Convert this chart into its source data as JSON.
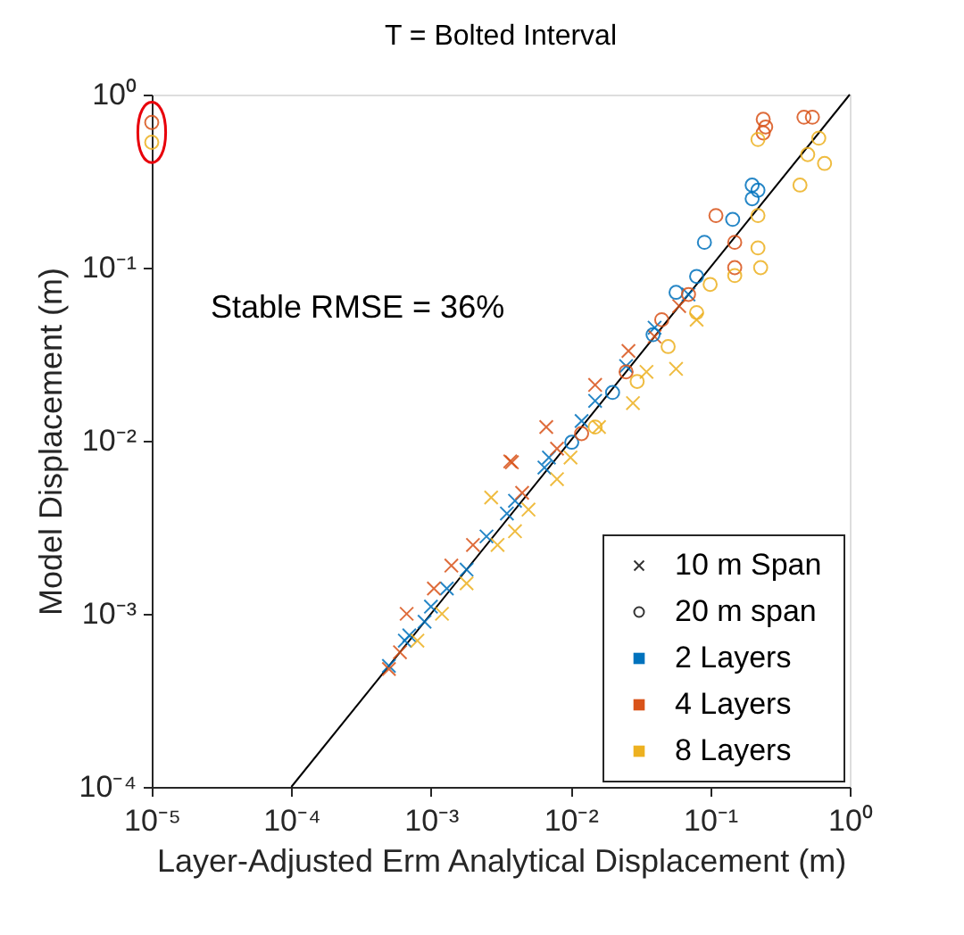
{
  "chart_data": {
    "type": "scatter",
    "title": "T = Bolted Interval",
    "xlabel": "Layer-Adjusted Erm Analytical Displacement (m)",
    "ylabel": "Model Displacement (m)",
    "annotations": [
      "Stable RMSE = 36%"
    ],
    "log": "xy",
    "grid": false,
    "legend": "bottom right",
    "xlim": [
      1e-05,
      1
    ],
    "ylim": [
      0.0001,
      1
    ],
    "xticks": [
      {
        "value": 1e-05,
        "label": "10⁻⁵"
      },
      {
        "value": 0.0001,
        "label": "10⁻⁴"
      },
      {
        "value": 0.001,
        "label": "10⁻³"
      },
      {
        "value": 0.01,
        "label": "10⁻²"
      },
      {
        "value": 0.1,
        "label": "10⁻¹"
      },
      {
        "value": 1,
        "label": "10⁰"
      }
    ],
    "yticks": [
      {
        "value": 0.0001,
        "label": "10⁻⁴"
      },
      {
        "value": 0.001,
        "label": "10⁻³"
      },
      {
        "value": 0.01,
        "label": "10⁻²"
      },
      {
        "value": 0.1,
        "label": "10⁻¹"
      },
      {
        "value": 1,
        "label": "10⁰"
      }
    ],
    "series": [
      {
        "type": "line",
        "color": "#000000",
        "marker": "none",
        "x": [
          0.0001,
          1
        ],
        "values": [
          0.0001,
          1
        ]
      },
      {
        "color": "#0072bd",
        "marker": "cross",
        "x": [
          0.0005,
          0.00065,
          0.0007,
          0.0009,
          0.001,
          0.0013,
          0.0018,
          0.0025,
          0.0035,
          0.004,
          0.0065,
          0.007,
          0.012,
          0.015,
          0.025,
          0.04,
          0.07
        ],
        "values": [
          0.0005,
          0.0007,
          0.00075,
          0.0009,
          0.0011,
          0.0014,
          0.0018,
          0.0028,
          0.0038,
          0.0045,
          0.007,
          0.008,
          0.013,
          0.017,
          0.027,
          0.045,
          0.07
        ]
      },
      {
        "color": "#d95319",
        "marker": "cross",
        "x": [
          0.0005,
          0.0006,
          0.00067,
          0.00105,
          0.0014,
          0.002,
          0.0037,
          0.0038,
          0.0045,
          0.0067,
          0.008,
          0.015,
          0.026,
          0.04,
          0.06
        ],
        "values": [
          0.00048,
          0.0006,
          0.001,
          0.0014,
          0.0019,
          0.0025,
          0.0076,
          0.0075,
          0.005,
          0.012,
          0.009,
          0.021,
          0.033,
          0.04,
          0.06
        ]
      },
      {
        "color": "#edb120",
        "marker": "cross",
        "x": [
          0.0008,
          0.0012,
          0.0018,
          0.0027,
          0.003,
          0.004,
          0.005,
          0.008,
          0.01,
          0.016,
          0.028,
          0.035,
          0.057,
          0.08
        ],
        "values": [
          0.0007,
          0.001,
          0.0015,
          0.0047,
          0.0025,
          0.003,
          0.004,
          0.006,
          0.008,
          0.012,
          0.0165,
          0.025,
          0.026,
          0.05
        ]
      },
      {
        "color": "#0072bd",
        "marker": "circle",
        "x": [
          0.0102,
          0.02,
          0.039,
          0.057,
          0.08,
          0.091,
          0.145,
          0.2,
          0.2,
          0.22
        ],
        "values": [
          0.0098,
          0.019,
          0.041,
          0.072,
          0.089,
          0.14,
          0.19,
          0.3,
          0.25,
          0.28
        ]
      },
      {
        "color": "#d95319",
        "marker": "circle",
        "x": [
          1e-05,
          0.012,
          0.025,
          0.045,
          0.07,
          0.11,
          0.15,
          0.15,
          0.24,
          0.24,
          0.25,
          0.47,
          0.54
        ],
        "values": [
          0.69,
          0.011,
          0.025,
          0.05,
          0.07,
          0.2,
          0.14,
          0.1,
          0.72,
          0.6,
          0.65,
          0.74,
          0.74
        ]
      },
      {
        "color": "#edb120",
        "marker": "circle",
        "x": [
          1e-05,
          0.015,
          0.03,
          0.05,
          0.08,
          0.1,
          0.15,
          0.22,
          0.22,
          0.22,
          0.23,
          0.44,
          0.5,
          0.6,
          0.66
        ],
        "values": [
          0.53,
          0.012,
          0.022,
          0.035,
          0.055,
          0.08,
          0.09,
          0.55,
          0.2,
          0.13,
          0.1,
          0.3,
          0.45,
          0.56,
          0.4
        ]
      },
      {
        "name": "10 m Span",
        "color": "#333333",
        "marker": "cross"
      },
      {
        "name": "20 m span",
        "color": "#333333",
        "marker": "circle"
      },
      {
        "name": "2 Layers",
        "color": "#0072bd",
        "marker": "square"
      },
      {
        "name": "4 Layers",
        "color": "#d95319",
        "marker": "square"
      },
      {
        "name": "8 Layers",
        "color": "#edb120",
        "marker": "square"
      }
    ]
  }
}
